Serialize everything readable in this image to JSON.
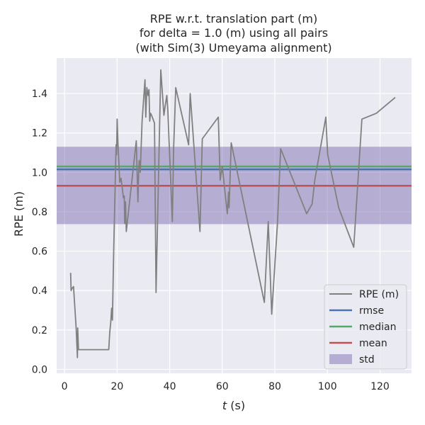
{
  "chart_data": {
    "type": "line",
    "title": [
      "RPE w.r.t. translation part (m)",
      "for delta = 1.0 (m) using all pairs",
      "(with Sim(3) Umeyama alignment)"
    ],
    "xlabel_prefix": "t",
    "xlabel_suffix": " (s)",
    "ylabel": "RPE (m)",
    "xlim": [
      -3,
      132
    ],
    "ylim": [
      -0.02,
      1.58
    ],
    "x_ticks": [
      0,
      20,
      40,
      60,
      80,
      100,
      120
    ],
    "y_ticks": [
      0.0,
      0.2,
      0.4,
      0.6,
      0.8,
      1.0,
      1.2,
      1.4
    ],
    "y_tick_labels": [
      "0.0",
      "0.2",
      "0.4",
      "0.6",
      "0.8",
      "1.0",
      "1.2",
      "1.4"
    ],
    "grid": true,
    "background": "#eaeaf2",
    "legend_position": "bottom-right",
    "series": [
      {
        "name": "RPE (m)",
        "color": "#808080",
        "x": [
          2.3,
          2.5,
          2.8,
          3.4,
          4.4,
          4.9,
          5.0,
          5.3,
          16.8,
          17.2,
          17.6,
          17.9,
          18.2,
          18.7,
          19.6,
          19.8,
          20.0,
          20.3,
          21.0,
          21.5,
          22.4,
          22.7,
          22.9,
          23.2,
          23.5,
          27.3,
          27.9,
          28.2,
          28.4,
          28.8,
          29.5,
          30.6,
          30.9,
          31.3,
          31.8,
          32.1,
          32.4,
          32.7,
          33.1,
          34.2,
          34.8,
          36.6,
          37.8,
          38.3,
          38.9,
          39.3,
          41.0,
          41.5,
          42.3,
          47.2,
          47.8,
          51.5,
          52.4,
          58.5,
          59.2,
          60.0,
          61.9,
          62.4,
          62.6,
          63.4,
          76.0,
          77.5,
          78.8,
          81.0,
          82.2,
          92.1,
          94.2,
          95.2,
          99.4,
          100.1,
          104.3,
          110.0,
          113.1,
          118.6,
          125.8
        ],
        "y": [
          0.49,
          0.4,
          0.41,
          0.42,
          0.21,
          0.06,
          0.21,
          0.1,
          0.1,
          0.19,
          0.24,
          0.31,
          0.25,
          0.6,
          1.14,
          1.09,
          1.27,
          1.15,
          0.95,
          0.97,
          0.87,
          0.88,
          0.74,
          0.85,
          0.7,
          1.16,
          0.85,
          1.0,
          1.06,
          1.0,
          1.26,
          1.47,
          1.28,
          1.43,
          1.39,
          1.42,
          1.26,
          1.3,
          1.29,
          1.25,
          0.39,
          1.52,
          1.29,
          1.34,
          1.39,
          1.31,
          0.75,
          1.12,
          1.43,
          1.14,
          1.4,
          0.7,
          1.17,
          1.28,
          0.96,
          1.03,
          0.79,
          0.9,
          0.82,
          1.15,
          0.34,
          0.75,
          0.28,
          0.74,
          1.12,
          0.79,
          0.84,
          0.96,
          1.28,
          1.09,
          0.82,
          0.62,
          1.27,
          1.3,
          1.38
        ]
      },
      {
        "name": "rmse",
        "color": "#4c72b0",
        "value": 1.015
      },
      {
        "name": "median",
        "color": "#55a868",
        "value": 1.03
      },
      {
        "name": "mean",
        "color": "#c44e52",
        "value": 0.932
      },
      {
        "name": "std",
        "color": "#8172b2",
        "band": [
          0.737,
          1.13
        ]
      }
    ]
  }
}
